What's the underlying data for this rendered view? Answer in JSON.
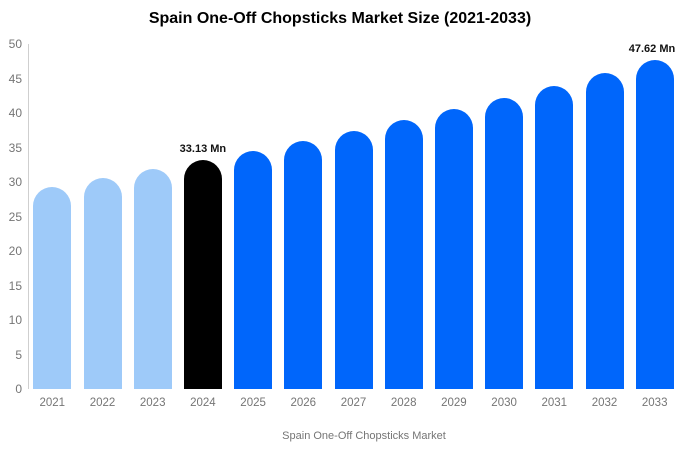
{
  "chart_data": {
    "type": "bar",
    "title": "Spain One-Off Chopsticks Market Size (2021-2033)",
    "categories": [
      "2021",
      "2022",
      "2023",
      "2024",
      "2025",
      "2026",
      "2027",
      "2028",
      "2029",
      "2030",
      "2031",
      "2032",
      "2033"
    ],
    "values": [
      29.35,
      30.56,
      31.82,
      33.13,
      34.49,
      35.91,
      37.39,
      38.93,
      40.53,
      42.2,
      43.93,
      45.74,
      47.62
    ],
    "bar_colors": [
      "#9ecaf9",
      "#9ecaf9",
      "#9ecaf9",
      "#000000",
      "#0066fb",
      "#0066fb",
      "#0066fb",
      "#0066fb",
      "#0066fb",
      "#0066fb",
      "#0066fb",
      "#0066fb",
      "#0066fb"
    ],
    "annotations": [
      {
        "category": "2024",
        "text": "33.13 Mn"
      },
      {
        "category": "2033",
        "text": "47.62 Mn"
      }
    ],
    "xlabel": "",
    "ylabel": "",
    "ylim": [
      0,
      50
    ],
    "yticks": [
      0,
      5,
      10,
      15,
      20,
      25,
      30,
      35,
      40,
      45,
      50
    ],
    "grid": false,
    "legend_position": "bottom"
  },
  "colors": {
    "historical_bar": "#9ecaf9",
    "highlight_bar": "#000000",
    "forecast_bar": "#0066fb",
    "axis_text": "#757575",
    "axis_line": "#cfcfcf",
    "value_label_text": "#111111"
  },
  "legend": {
    "label": "Spain One-Off Chopsticks Market",
    "swatch_color": "#9ecaf9"
  }
}
